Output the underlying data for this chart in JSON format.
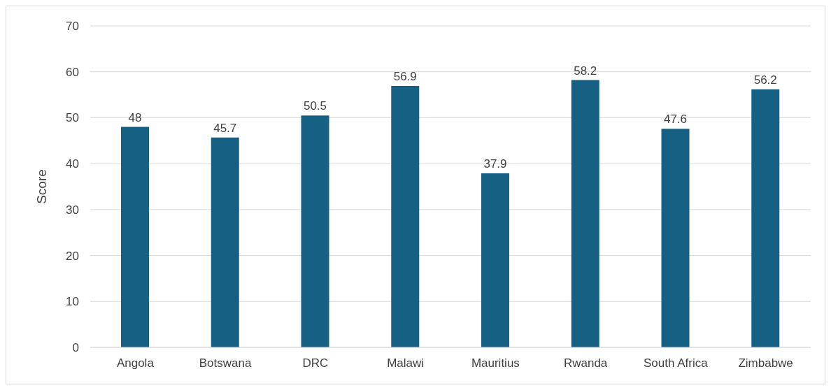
{
  "chart_data": {
    "type": "bar",
    "ylabel": "Score",
    "categories": [
      "Angola",
      "Botswana",
      "DRC",
      "Malawi",
      "Mauritius",
      "Rwanda",
      "South Africa",
      "Zimbabwe"
    ],
    "values": [
      48,
      45.7,
      50.5,
      56.9,
      37.9,
      58.2,
      47.6,
      56.2
    ],
    "color": "#166083",
    "ylim": [
      0,
      70
    ],
    "yticks": [
      0,
      10,
      20,
      30,
      40,
      50,
      60,
      70
    ],
    "grid": "y",
    "data_labels": true
  }
}
